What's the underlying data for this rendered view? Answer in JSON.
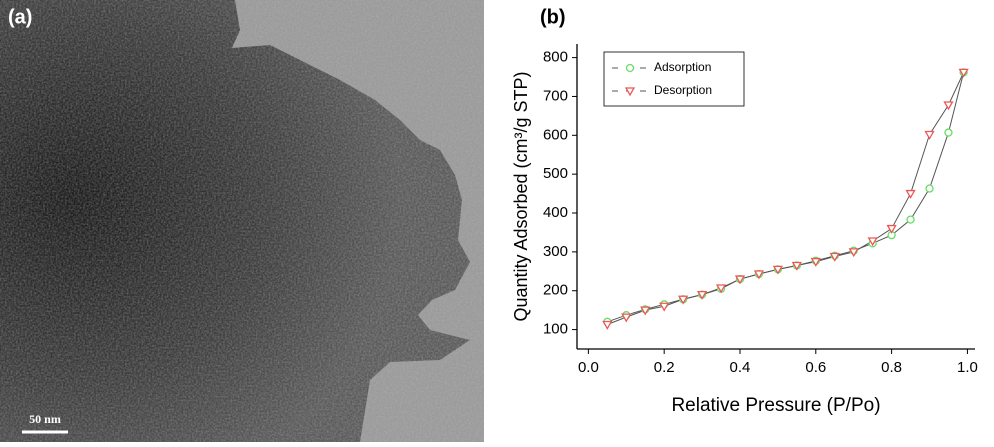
{
  "panel_a": {
    "label": "(a)",
    "scale_bar": "50 nm"
  },
  "chart_data": {
    "type": "line",
    "panel_label": "(b)",
    "xlabel": "Relative Pressure (P/Po)",
    "ylabel": "Quantity Adsorbed (cm³/g STP)",
    "xlim": [
      -0.03,
      1.02
    ],
    "ylim": [
      50,
      835
    ],
    "xticks": [
      {
        "value": 0,
        "label": "0.0"
      },
      0.2,
      0.4,
      0.6,
      0.8,
      {
        "value": 1,
        "label": "1.0"
      }
    ],
    "yticks": [
      100,
      200,
      300,
      400,
      500,
      600,
      700,
      800
    ],
    "line_color": "#555555",
    "series": [
      {
        "name": "Adsorption",
        "color": "#66dd66",
        "marker": "circle",
        "x": [
          0.05,
          0.1,
          0.15,
          0.2,
          0.25,
          0.3,
          0.35,
          0.4,
          0.45,
          0.5,
          0.55,
          0.6,
          0.65,
          0.7,
          0.75,
          0.8,
          0.85,
          0.9,
          0.95,
          0.99
        ],
        "values": [
          120,
          137,
          152,
          165,
          178,
          190,
          205,
          230,
          243,
          255,
          265,
          277,
          290,
          303,
          322,
          343,
          383,
          463,
          607,
          762
        ]
      },
      {
        "name": "Desorption",
        "color": "#ee5555",
        "marker": "triangle",
        "x": [
          0.99,
          0.95,
          0.9,
          0.85,
          0.8,
          0.75,
          0.7,
          0.65,
          0.6,
          0.55,
          0.5,
          0.45,
          0.4,
          0.35,
          0.3,
          0.25,
          0.2,
          0.15,
          0.1,
          0.05
        ],
        "values": [
          762,
          678,
          602,
          450,
          360,
          328,
          300,
          288,
          275,
          265,
          255,
          243,
          230,
          207,
          190,
          178,
          160,
          150,
          132,
          113
        ]
      }
    ]
  }
}
